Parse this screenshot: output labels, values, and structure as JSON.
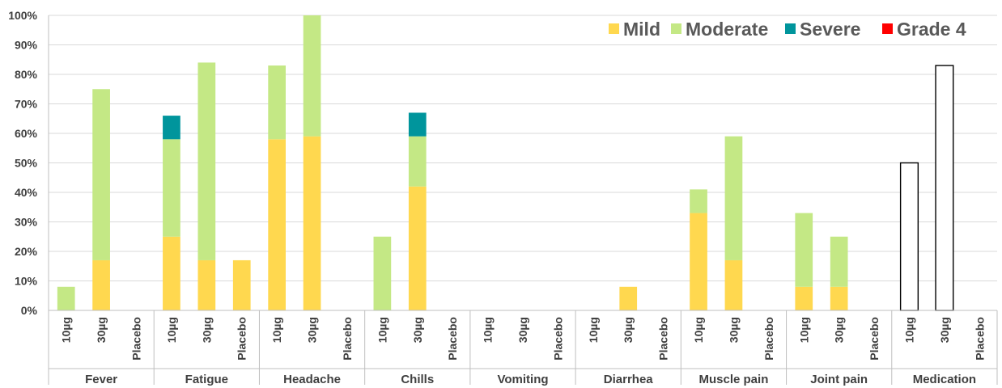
{
  "chart_data": {
    "type": "bar",
    "stacked": true,
    "ylim": [
      0,
      100
    ],
    "y_tick_labels": [
      "0%",
      "10%",
      "20%",
      "30%",
      "40%",
      "50%",
      "60%",
      "70%",
      "80%",
      "90%",
      "100%"
    ],
    "y_ticks": [
      0,
      10,
      20,
      30,
      40,
      50,
      60,
      70,
      80,
      90,
      100
    ],
    "grid": true,
    "legend_position": "top-right",
    "groups": [
      {
        "label": "Fever",
        "categories": [
          "10µg",
          "30µg",
          "Placebo"
        ]
      },
      {
        "label": "Fatigue",
        "categories": [
          "10µg",
          "30µg",
          "Placebo"
        ]
      },
      {
        "label": "Headache",
        "categories": [
          "10µg",
          "30µg",
          "Placebo"
        ]
      },
      {
        "label": "Chills",
        "categories": [
          "10µg",
          "30µg",
          "Placebo"
        ]
      },
      {
        "label": "Vomiting",
        "categories": [
          "10µg",
          "30µg",
          "Placebo"
        ]
      },
      {
        "label": "Diarrhea",
        "categories": [
          "10µg",
          "30µg",
          "Placebo"
        ]
      },
      {
        "label": "Muscle pain",
        "categories": [
          "10µg",
          "30µg",
          "Placebo"
        ]
      },
      {
        "label": "Joint pain",
        "categories": [
          "10µg",
          "30µg",
          "Placebo"
        ]
      },
      {
        "label": "Medication",
        "categories": [
          "10µg",
          "30µg",
          "Placebo"
        ]
      }
    ],
    "series": [
      {
        "name": "Mild",
        "color": "#FFD84F",
        "values": [
          0,
          17,
          0,
          25,
          17,
          17,
          58,
          59,
          0,
          0,
          42,
          0,
          0,
          0,
          0,
          0,
          8,
          0,
          33,
          17,
          0,
          8,
          8,
          0,
          0,
          0,
          0
        ]
      },
      {
        "name": "Moderate",
        "color": "#C4E885",
        "values": [
          8,
          58,
          0,
          33,
          67,
          0,
          25,
          41,
          0,
          25,
          17,
          0,
          0,
          0,
          0,
          0,
          0,
          0,
          8,
          42,
          0,
          25,
          17,
          0,
          0,
          0,
          0
        ]
      },
      {
        "name": "Severe",
        "color": "#00959C",
        "values": [
          0,
          0,
          0,
          8,
          0,
          0,
          0,
          0,
          0,
          0,
          8,
          0,
          0,
          0,
          0,
          0,
          0,
          0,
          0,
          0,
          0,
          0,
          0,
          0,
          0,
          0,
          0
        ]
      },
      {
        "name": "Grade 4",
        "color": "#FF0000",
        "values": [
          0,
          0,
          0,
          0,
          0,
          0,
          0,
          0,
          0,
          0,
          0,
          0,
          0,
          0,
          0,
          0,
          0,
          0,
          0,
          0,
          0,
          0,
          0,
          0,
          0,
          0,
          0
        ]
      }
    ],
    "medication": {
      "group_index": 8,
      "values": [
        50,
        83,
        0
      ],
      "fill": "#FFFFFF",
      "stroke": "#000000"
    }
  }
}
